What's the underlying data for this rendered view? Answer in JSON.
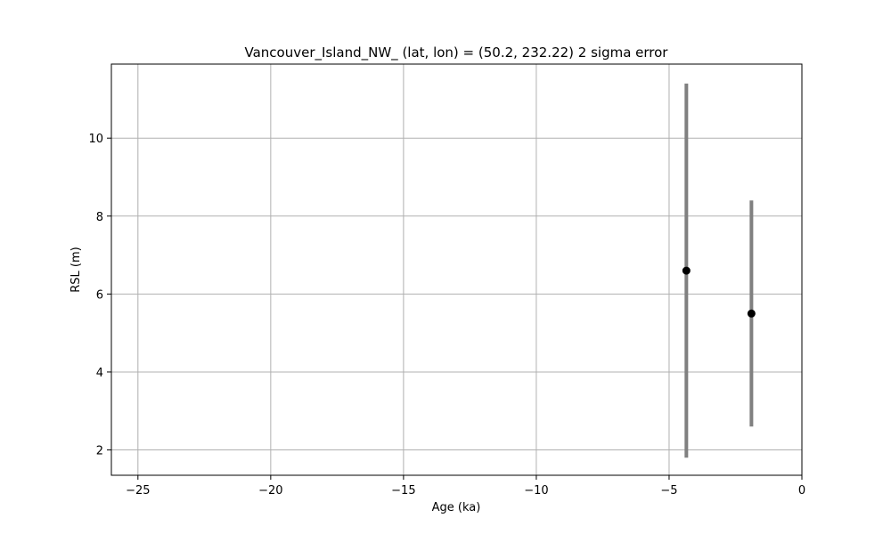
{
  "chart_data": {
    "type": "scatter",
    "title": "Vancouver_Island_NW_ (lat, lon) = (50.2, 232.22)  2 sigma error",
    "xlabel": "Age (ka)",
    "ylabel": "RSL (m)",
    "xlim": [
      -26,
      0
    ],
    "ylim": [
      1.35,
      11.9
    ],
    "xticks": [
      -25,
      -20,
      -15,
      -10,
      -5,
      0
    ],
    "xtick_labels": [
      "−25",
      "−20",
      "−15",
      "−10",
      "−5",
      "0"
    ],
    "yticks": [
      2,
      4,
      6,
      8,
      10
    ],
    "ytick_labels": [
      "2",
      "4",
      "6",
      "8",
      "10"
    ],
    "grid": true,
    "colors": {
      "point": "#000000",
      "errorbar": "#808080",
      "grid": "#b0b0b0"
    },
    "points": [
      {
        "x": -4.35,
        "y": 6.6,
        "y_low": 1.8,
        "y_high": 11.4
      },
      {
        "x": -1.9,
        "y": 5.5,
        "y_low": 2.6,
        "y_high": 8.4
      }
    ]
  }
}
